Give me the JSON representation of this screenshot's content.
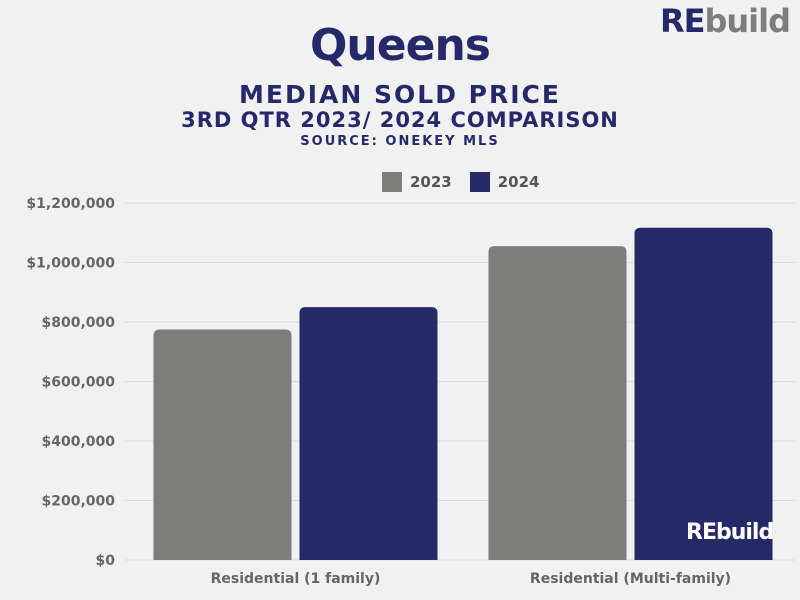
{
  "logo": {
    "re": "RE",
    "build": "build"
  },
  "title": "Queens",
  "subtitle1": "MEDIAN SOLD PRICE",
  "subtitle2": "3RD QTR 2023/ 2024 COMPARISON",
  "subtitle3": "SOURCE: ONEKEY MLS",
  "chart_data": {
    "type": "bar",
    "categories": [
      "Residential (1 family)",
      "Residential (Multi-family)"
    ],
    "series": [
      {
        "name": "2023",
        "values": [
          775000,
          1055000
        ],
        "color": "#7d7d7b"
      },
      {
        "name": "2024",
        "values": [
          850000,
          1117000
        ],
        "color": "#252965"
      }
    ],
    "ylim": [
      0,
      1200000
    ],
    "yticks": [
      "$0",
      "$200,000",
      "$400,000",
      "$600,000",
      "$800,000",
      "$1,000,000",
      "$1,200,000"
    ],
    "grid": true,
    "legend": "top-right"
  }
}
